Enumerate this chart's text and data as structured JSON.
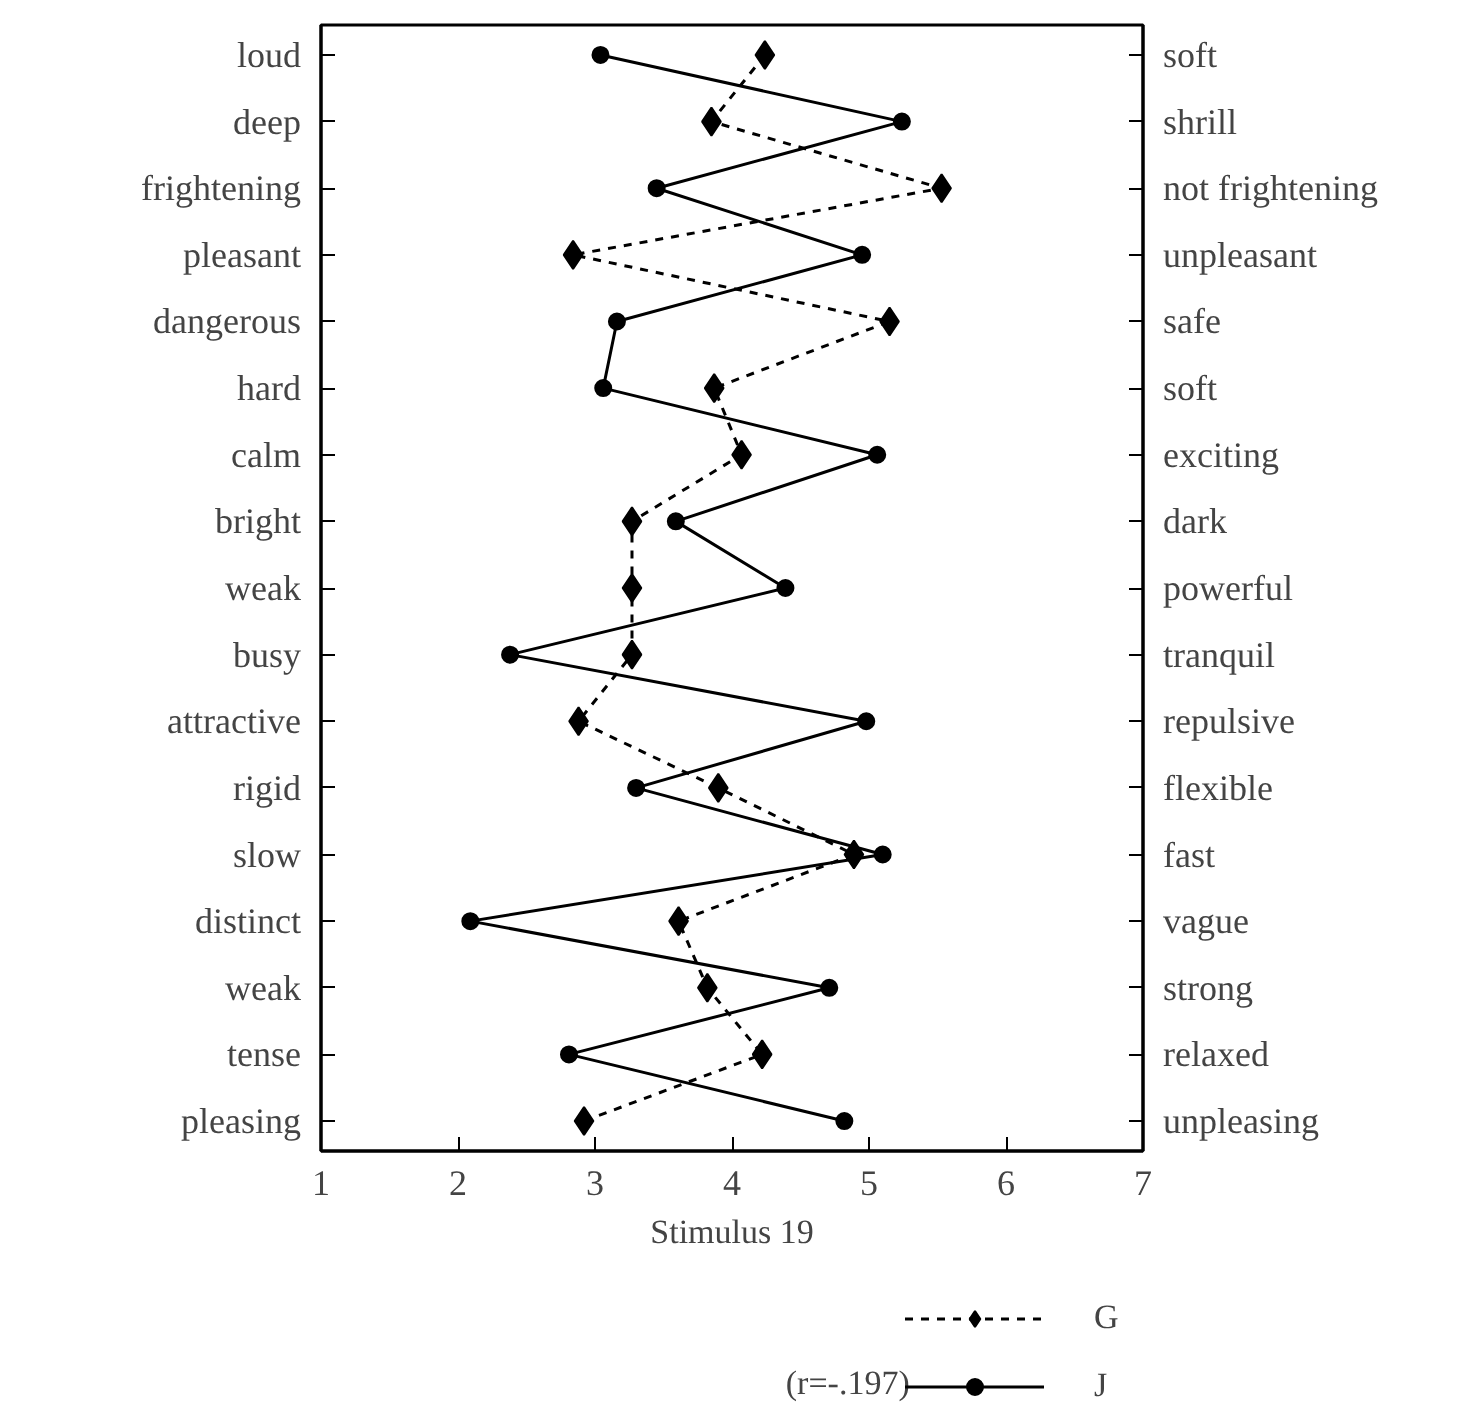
{
  "chart_data": {
    "type": "line",
    "orientation": "horizontal",
    "xlabel": "Stimulus 19",
    "categories": [
      "loud",
      "deep",
      "frightening",
      "pleasant",
      "dangerous",
      "hard",
      "calm",
      "bright",
      "weak",
      "busy",
      "attractive",
      "rigid",
      "slow",
      "distinct",
      "weak",
      "tense",
      "pleasing"
    ],
    "y2_categories": [
      "soft",
      "shrill",
      "not frightening",
      "unpleasant",
      "safe",
      "soft",
      "exciting",
      "dark",
      "powerful",
      "tranquil",
      "repulsive",
      "flexible",
      "fast",
      "vague",
      "strong",
      "relaxed",
      "unpleasing"
    ],
    "xlim": [
      1,
      7
    ],
    "xticks": [
      1,
      2,
      3,
      4,
      5,
      6,
      7
    ],
    "series": [
      {
        "name": "G",
        "color": "#000000",
        "line_style": "dashed",
        "marker": "diamond",
        "values": [
          4.24,
          3.85,
          5.53,
          2.84,
          5.15,
          3.87,
          4.07,
          3.27,
          3.27,
          3.27,
          2.88,
          3.9,
          4.89,
          3.61,
          3.82,
          4.22,
          2.92
        ]
      },
      {
        "name": "J",
        "color": "#000000",
        "line_style": "solid",
        "marker": "circle",
        "values": [
          3.04,
          5.24,
          3.45,
          4.95,
          3.16,
          3.06,
          5.06,
          3.59,
          4.39,
          2.38,
          4.98,
          3.3,
          5.1,
          2.09,
          4.71,
          2.81,
          4.82
        ]
      }
    ],
    "annotations": [
      "(r=-.197)"
    ],
    "grid": false,
    "legend": "bottom right"
  }
}
